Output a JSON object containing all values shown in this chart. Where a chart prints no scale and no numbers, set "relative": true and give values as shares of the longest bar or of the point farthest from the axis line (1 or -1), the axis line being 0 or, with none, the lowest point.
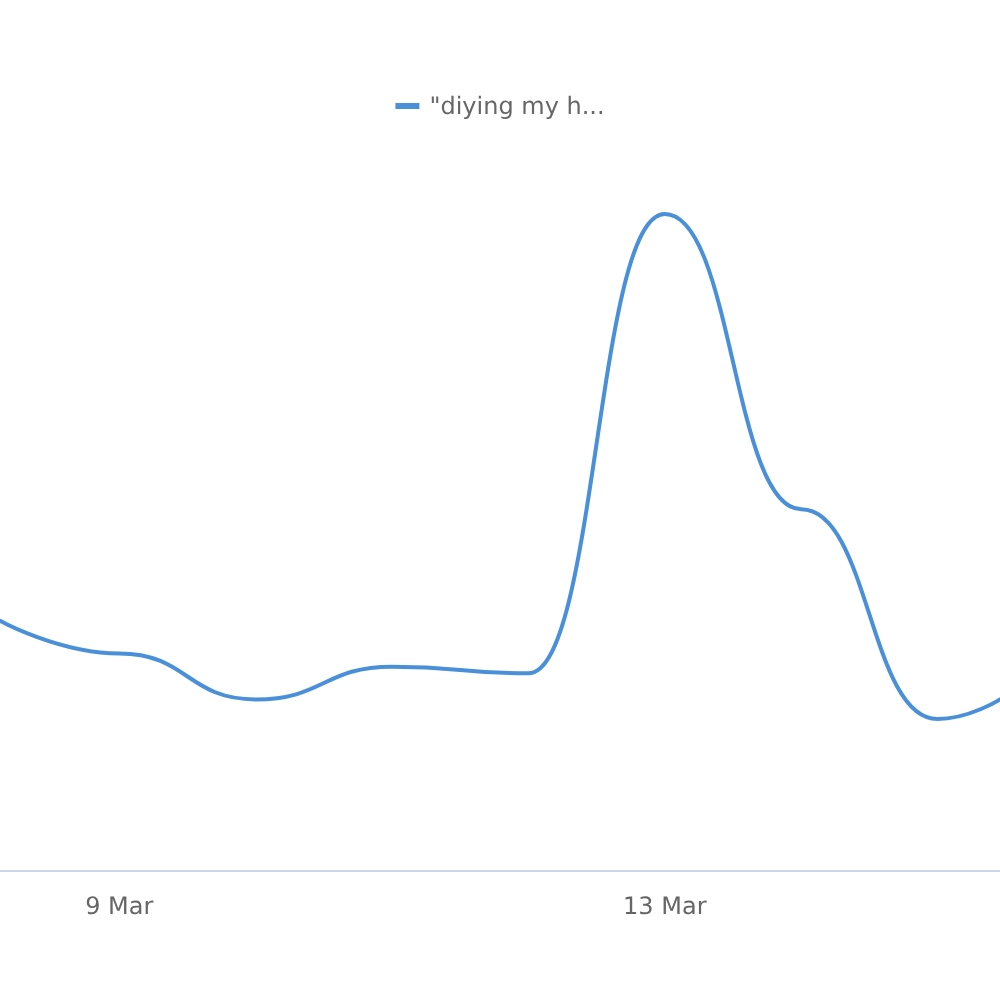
{
  "chart_data": {
    "type": "line",
    "relative": true,
    "legend": "top",
    "grid": false,
    "marker": "none",
    "line_style": "solid",
    "xlim": [
      "--03-08T03:00",
      "--03-15T11:00"
    ],
    "xticks": [
      {
        "value": "--03-09",
        "label": "9 Mar"
      },
      {
        "value": "--03-13",
        "label": "13 Mar"
      }
    ],
    "series": [
      {
        "name": "\"diying my h...",
        "color": "#4a90d9",
        "x": [
          "--03-08T03:00",
          "--03-09",
          "--03-10",
          "--03-11",
          "--03-12",
          "--03-13",
          "--03-14",
          "--03-15",
          "--03-15T11:00"
        ],
        "values": [
          0.38,
          0.33,
          0.26,
          0.31,
          0.3,
          1,
          0.55,
          0.23,
          0.26
        ]
      }
    ]
  }
}
